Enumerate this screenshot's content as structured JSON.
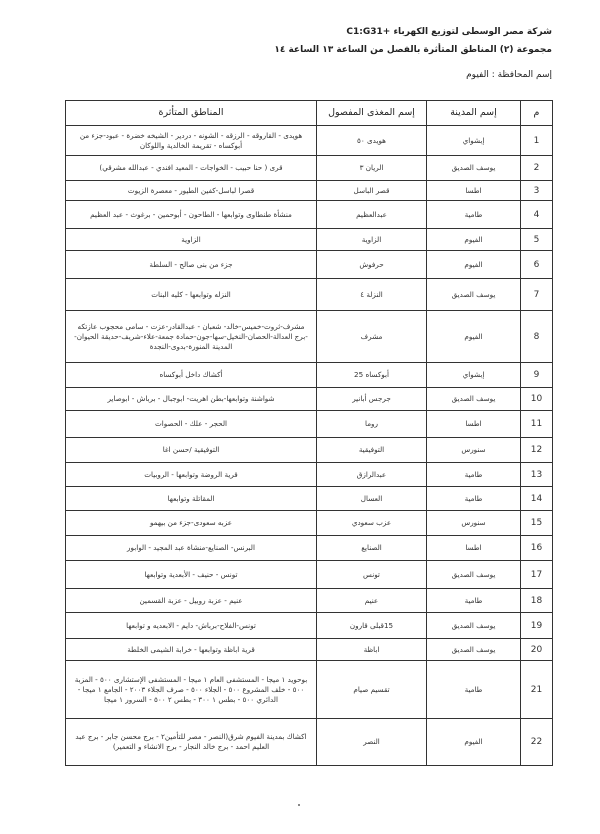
{
  "header": {
    "company": "شركة مصر الوسطى لتوزيع الكهرباء +C1:G31",
    "group": "مجموعة (٢) المناطق المتأثرة بالفصل من الساعة ١٣ الساعة ١٤",
    "governorate": "إسم المحافظة : الفيوم"
  },
  "table": {
    "columns": [
      "م",
      "إسم المدينة",
      "إسم المغذى المفصول",
      "المناطق المتأثرة"
    ],
    "rows": [
      {
        "n": "1",
        "city": "إبشواي",
        "feeder": "هويدى ٥٠",
        "areas": "هويدى - القاروقه - الرزقه - الشونه - دردير - الشيخه خضرة - عبود-جزء من أبوكساه - تقريمة الخالدية واللوكان"
      },
      {
        "n": "2",
        "city": "يوسف الصديق",
        "feeder": "الريان ٣",
        "areas": "قرى ( حنا حبيب - الخواجات - المعيد افندي - عبدالله مشرقي)"
      },
      {
        "n": "3",
        "city": "اطسا",
        "feeder": "قصر الباسل",
        "areas": "قصرا لباسل-كفين الطيور - معصرة الزيوت"
      },
      {
        "n": "4",
        "city": "طامية",
        "feeder": "عبدالعظيم",
        "areas": "منشأة طنطاوى وتوابعها - الطاحون - أبوحمين - برغوث - عبد العظيم"
      },
      {
        "n": "5",
        "city": "الفيوم",
        "feeder": "الزاوية",
        "areas": "الزاوية"
      },
      {
        "n": "6",
        "city": "الفيوم",
        "feeder": "حرفوش",
        "areas": "جزء من بنى صالح - السلطة"
      },
      {
        "n": "7",
        "city": "يوسف الصديق",
        "feeder": "النزلة ٤",
        "areas": "النزله وتوابعها - كليه البنات"
      },
      {
        "n": "8",
        "city": "الفيوم",
        "feeder": "مشرف",
        "areas": "مشرف-ثروت-خميس-خالد- شعبان - عبدالقادر-عزت - سامى محجوب عازتكه -برج العدالة-الحصان-النخيل-سها-جون-حمادة جمعة-علاء-شريف-حديقة الحيوان-المدينة المنورة-بدوى-النجدة"
      },
      {
        "n": "9",
        "city": "إبشواي",
        "feeder": "أبوكساه 25",
        "areas": "أكشاك داخل أبوكساه"
      },
      {
        "n": "10",
        "city": "يوسف الصديق",
        "feeder": "جرجس أبانير",
        "areas": "شواشنة وتوابعها-بطن اهريت- ابوجبال - برباش - ابوصاير"
      },
      {
        "n": "11",
        "city": "اطسا",
        "feeder": "روما",
        "areas": "الحجر - علك - الحصوات"
      },
      {
        "n": "12",
        "city": "سنورس",
        "feeder": "التوفيقية",
        "areas": "التوفيقية /حسن اغا"
      },
      {
        "n": "13",
        "city": "طامية",
        "feeder": "عبدالرازق",
        "areas": "قرية الروضة وتوابعها - الروبيات"
      },
      {
        "n": "14",
        "city": "طامية",
        "feeder": "العسال",
        "areas": "المقاتلة وتوابعها"
      },
      {
        "n": "15",
        "city": "سنورس",
        "feeder": "عزب سعودي",
        "areas": "عزبه سعودى-جزء من بيهمو"
      },
      {
        "n": "16",
        "city": "اطسا",
        "feeder": "الصنايع",
        "areas": "البرنس- الصنايع-منشاة عبد المجيد - الوابور"
      },
      {
        "n": "17",
        "city": "يوسف الصديق",
        "feeder": "تونس",
        "areas": "تونس - حنيف - الأبعدية وتوابعها"
      },
      {
        "n": "18",
        "city": "طامية",
        "feeder": "عنيم",
        "areas": "عنيم - عزبة روبيل - عزبة القسمين"
      },
      {
        "n": "19",
        "city": "يوسف الصديق",
        "feeder": "15قبلى قارون",
        "areas": "تونس-الفلاح-برباش- دايم - الابعديه و توابعها"
      },
      {
        "n": "20",
        "city": "يوسف الصديق",
        "feeder": "اباظة",
        "areas": "قرية اباظة وتوابعها - خرابة الشيمى الخلطة"
      },
      {
        "n": "21",
        "city": "طامية",
        "feeder": "تقسيم صيام",
        "areas": "بوحويد ١ ميجا - المستشفى العام ١ ميجا - المستشفى الإستشارى ٥٠٠ - المزبة ٥٠٠ - خلف المشروع ٥٠٠ - الجلاء ٥٠٠ - صرف الجلاء ٢٠٠٣ - الجامع ١ ميجا - الدائري ٥٠٠ - بطس ١ ٣٠٠ - بطس ٢ ٥٠٠ - السرور ١ ميجا"
      },
      {
        "n": "22",
        "city": "الفيوم",
        "feeder": "النصر",
        "areas": "اكشاك بمدينة الفيوم شرق(النصر - مصر للتأمين٢ - برج محسن جابر - برج عبد العليم احمد - برج خالد النجار - برج الانشاء و التعمير)"
      }
    ]
  }
}
